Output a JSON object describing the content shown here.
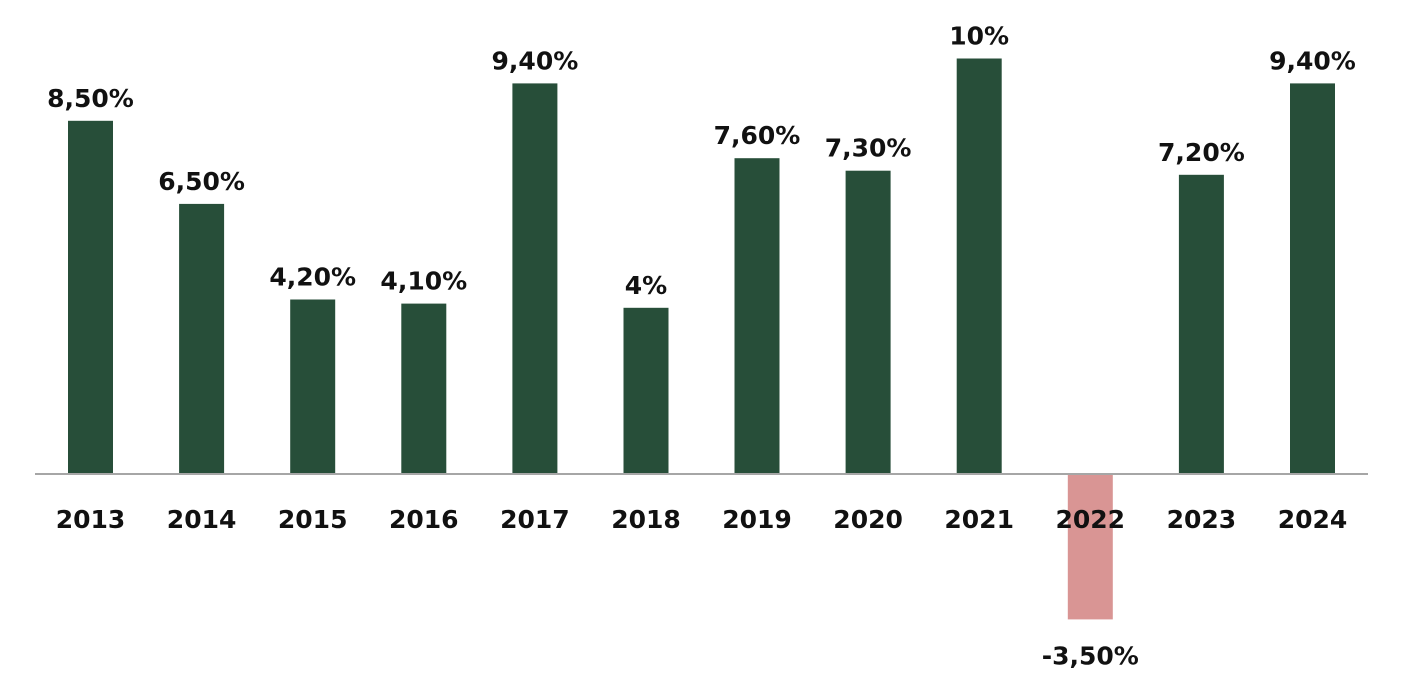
{
  "chart_data": {
    "type": "bar",
    "title": "",
    "xlabel": "",
    "ylabel": "",
    "ylim": [
      -3.5,
      10
    ],
    "grid": false,
    "categories": [
      "2013",
      "2014",
      "2015",
      "2016",
      "2017",
      "2018",
      "2019",
      "2020",
      "2021",
      "2022",
      "2023",
      "2024"
    ],
    "values": [
      8.5,
      6.5,
      4.2,
      4.1,
      9.4,
      4.0,
      7.6,
      7.3,
      10.0,
      -3.5,
      7.2,
      9.4
    ],
    "data_labels": [
      "8,50%",
      "6,50%",
      "4,20%",
      "4,10%",
      "9,40%",
      "4%",
      "7,60%",
      "7,30%",
      "10%",
      "-3,50%",
      "7,20%",
      "9,40%"
    ],
    "colors": {
      "positive": "#274E39",
      "negative": "#D99594",
      "axis": "#A6A6A6"
    }
  }
}
